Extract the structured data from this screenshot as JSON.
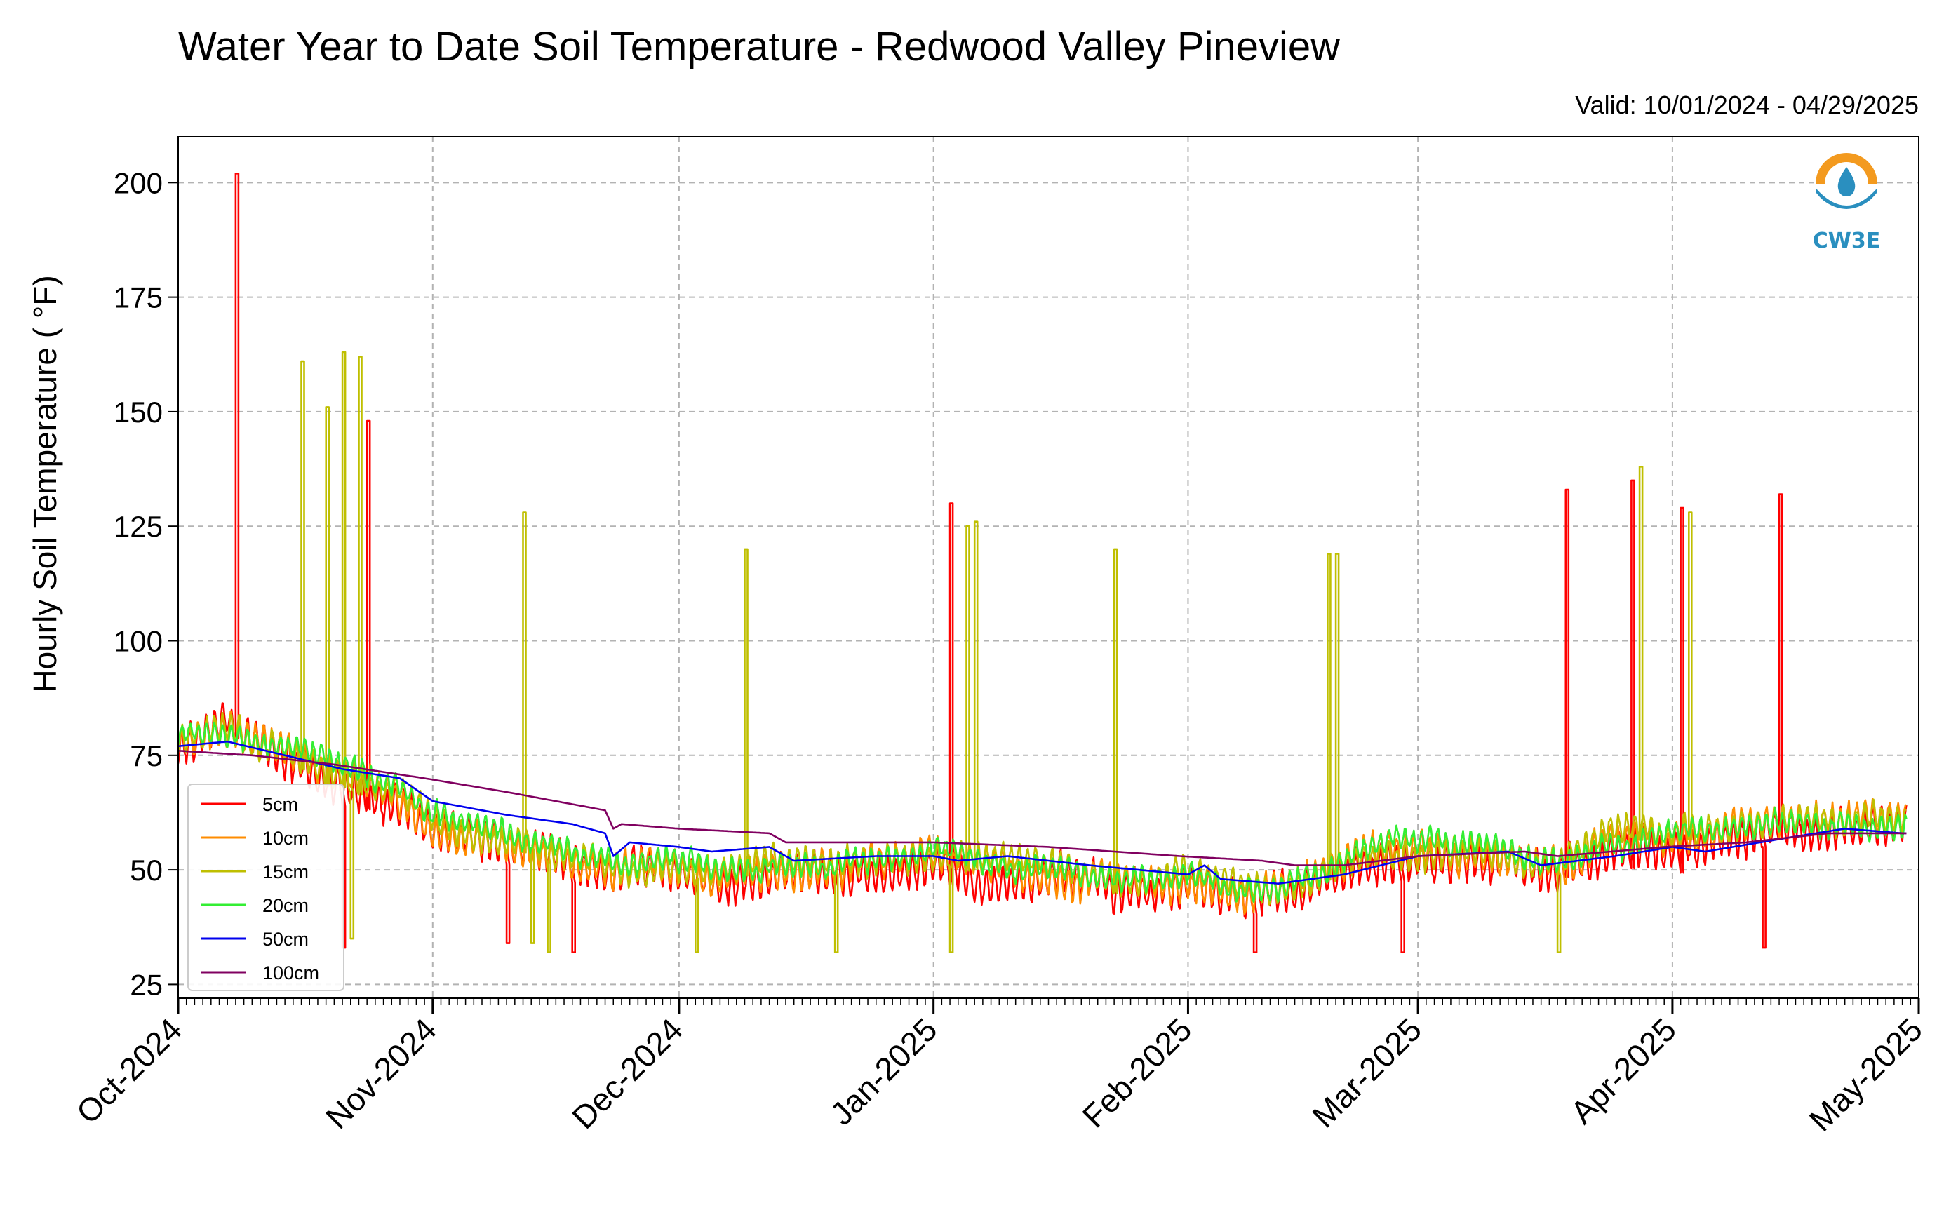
{
  "chart_data": {
    "type": "line",
    "title": "Water Year to Date Soil Temperature - Redwood Valley Pineview",
    "valid_text": "Valid: 10/01/2024 - 04/29/2025",
    "ylabel": "Hourly Soil Temperature ( °F)",
    "xlabel": "",
    "xlim": [
      "2024-10-01",
      "2025-05-01"
    ],
    "ylim": [
      22,
      210
    ],
    "yticks": [
      25,
      50,
      75,
      100,
      125,
      150,
      175,
      200
    ],
    "x_ticks": [
      {
        "date": "2024-10-01",
        "label": "Oct-2024"
      },
      {
        "date": "2024-11-01",
        "label": "Nov-2024"
      },
      {
        "date": "2024-12-01",
        "label": "Dec-2024"
      },
      {
        "date": "2025-01-01",
        "label": "Jan-2025"
      },
      {
        "date": "2025-02-01",
        "label": "Feb-2025"
      },
      {
        "date": "2025-03-01",
        "label": "Mar-2025"
      },
      {
        "date": "2025-04-01",
        "label": "Apr-2025"
      },
      {
        "date": "2025-05-01",
        "label": "May-2025"
      }
    ],
    "grid": true,
    "legend_position": "lower-left",
    "logo_text": "CW3E",
    "series": [
      {
        "name": "5cm",
        "color": "#ff0000",
        "daily_swing": 7,
        "noise_seed": 1,
        "points": [
          [
            "2024-10-01",
            76
          ],
          [
            "2024-10-07",
            80
          ],
          [
            "2024-10-14",
            74
          ],
          [
            "2024-10-21",
            68
          ],
          [
            "2024-10-28",
            64
          ],
          [
            "2024-11-01",
            57
          ],
          [
            "2024-11-10",
            54
          ],
          [
            "2024-11-18",
            52
          ],
          [
            "2024-11-23",
            48
          ],
          [
            "2024-11-28",
            50
          ],
          [
            "2024-12-05",
            47
          ],
          [
            "2024-12-12",
            48
          ],
          [
            "2024-12-20",
            49
          ],
          [
            "2024-12-25",
            50
          ],
          [
            "2025-01-01",
            51
          ],
          [
            "2025-01-07",
            48
          ],
          [
            "2025-01-14",
            47
          ],
          [
            "2025-01-20",
            46
          ],
          [
            "2025-01-27",
            44
          ],
          [
            "2025-02-01",
            47
          ],
          [
            "2025-02-08",
            44
          ],
          [
            "2025-02-15",
            45
          ],
          [
            "2025-02-20",
            48
          ],
          [
            "2025-02-25",
            52
          ],
          [
            "2025-03-05",
            53
          ],
          [
            "2025-03-12",
            52
          ],
          [
            "2025-03-18",
            50
          ],
          [
            "2025-03-25",
            55
          ],
          [
            "2025-04-01",
            55
          ],
          [
            "2025-04-08",
            57
          ],
          [
            "2025-04-15",
            60
          ],
          [
            "2025-04-22",
            58
          ],
          [
            "2025-04-29",
            59
          ]
        ],
        "spikes": [
          [
            "2024-10-08",
            202
          ],
          [
            "2024-10-24",
            148
          ],
          [
            "2025-01-03",
            130
          ],
          [
            "2025-03-19",
            133
          ],
          [
            "2025-03-27",
            135
          ],
          [
            "2025-04-02",
            129
          ],
          [
            "2025-04-14",
            132
          ],
          [
            "2024-11-10",
            34
          ],
          [
            "2024-11-18",
            32
          ],
          [
            "2025-02-09",
            32
          ],
          [
            "2025-02-27",
            32
          ],
          [
            "2025-04-12",
            33
          ],
          [
            "2024-10-21",
            33
          ]
        ]
      },
      {
        "name": "10cm",
        "color": "#ff8c00",
        "daily_swing": 6,
        "noise_seed": 2,
        "points": [
          [
            "2024-10-01",
            78
          ],
          [
            "2024-10-07",
            82
          ],
          [
            "2024-10-14",
            76
          ],
          [
            "2024-10-21",
            70
          ],
          [
            "2024-10-28",
            66
          ],
          [
            "2024-11-01",
            59
          ],
          [
            "2024-11-10",
            56
          ],
          [
            "2024-11-18",
            53
          ],
          [
            "2024-11-23",
            50
          ],
          [
            "2024-11-28",
            52
          ],
          [
            "2024-12-05",
            49
          ],
          [
            "2024-12-12",
            50
          ],
          [
            "2024-12-20",
            50
          ],
          [
            "2024-12-25",
            52
          ],
          [
            "2025-01-01",
            53
          ],
          [
            "2025-01-07",
            50
          ],
          [
            "2025-01-14",
            49
          ],
          [
            "2025-01-20",
            48
          ],
          [
            "2025-01-27",
            46
          ],
          [
            "2025-02-01",
            48
          ],
          [
            "2025-02-08",
            45
          ],
          [
            "2025-02-15",
            47
          ],
          [
            "2025-02-20",
            50
          ],
          [
            "2025-02-25",
            54
          ],
          [
            "2025-03-05",
            55
          ],
          [
            "2025-03-12",
            53
          ],
          [
            "2025-03-18",
            52
          ],
          [
            "2025-03-25",
            58
          ],
          [
            "2025-04-01",
            57
          ],
          [
            "2025-04-08",
            59
          ],
          [
            "2025-04-15",
            62
          ],
          [
            "2025-04-22",
            60
          ],
          [
            "2025-04-29",
            61
          ]
        ],
        "spikes": []
      },
      {
        "name": "15cm",
        "color": "#bfbf00",
        "daily_swing": 5,
        "noise_seed": 3,
        "points": [
          [
            "2024-10-01",
            79
          ],
          [
            "2024-10-07",
            81
          ],
          [
            "2024-10-14",
            76
          ],
          [
            "2024-10-21",
            71
          ],
          [
            "2024-10-28",
            66
          ],
          [
            "2024-11-01",
            59
          ],
          [
            "2024-11-10",
            57
          ],
          [
            "2024-11-18",
            54
          ],
          [
            "2024-11-23",
            51
          ],
          [
            "2024-11-28",
            52
          ],
          [
            "2024-12-05",
            50
          ],
          [
            "2024-12-12",
            51
          ],
          [
            "2024-12-20",
            51
          ],
          [
            "2024-12-25",
            52
          ],
          [
            "2025-01-01",
            53
          ],
          [
            "2025-01-07",
            51
          ],
          [
            "2025-01-14",
            50
          ],
          [
            "2025-01-20",
            49
          ],
          [
            "2025-01-27",
            47
          ],
          [
            "2025-02-01",
            49
          ],
          [
            "2025-02-08",
            46
          ],
          [
            "2025-02-15",
            47
          ],
          [
            "2025-02-20",
            50
          ],
          [
            "2025-02-25",
            54
          ],
          [
            "2025-03-05",
            55
          ],
          [
            "2025-03-12",
            54
          ],
          [
            "2025-03-18",
            52
          ],
          [
            "2025-03-25",
            57
          ],
          [
            "2025-04-01",
            57
          ],
          [
            "2025-04-08",
            59
          ],
          [
            "2025-04-15",
            61
          ],
          [
            "2025-04-22",
            60
          ],
          [
            "2025-04-29",
            60
          ]
        ],
        "spikes": [
          [
            "2024-10-16",
            161
          ],
          [
            "2024-10-19",
            151
          ],
          [
            "2024-10-21",
            163
          ],
          [
            "2024-10-23",
            162
          ],
          [
            "2024-11-12",
            128
          ],
          [
            "2024-12-09",
            120
          ],
          [
            "2025-01-05",
            125
          ],
          [
            "2025-01-06",
            126
          ],
          [
            "2025-01-23",
            120
          ],
          [
            "2025-02-18",
            119
          ],
          [
            "2025-02-19",
            119
          ],
          [
            "2025-03-28",
            138
          ],
          [
            "2025-04-03",
            128
          ],
          [
            "2024-11-13",
            34
          ],
          [
            "2024-11-15",
            32
          ],
          [
            "2024-12-03",
            32
          ],
          [
            "2024-12-20",
            32
          ],
          [
            "2025-01-03",
            32
          ],
          [
            "2025-03-18",
            32
          ],
          [
            "2024-10-22",
            35
          ]
        ]
      },
      {
        "name": "20cm",
        "color": "#33ee33",
        "daily_swing": 4,
        "noise_seed": 4,
        "points": [
          [
            "2024-10-01",
            80
          ],
          [
            "2024-10-07",
            81
          ],
          [
            "2024-10-14",
            77
          ],
          [
            "2024-10-21",
            72
          ],
          [
            "2024-10-28",
            67
          ],
          [
            "2024-11-01",
            60
          ],
          [
            "2024-11-10",
            58
          ],
          [
            "2024-11-18",
            55
          ],
          [
            "2024-11-23",
            52
          ],
          [
            "2024-11-28",
            53
          ],
          [
            "2024-12-05",
            51
          ],
          [
            "2024-12-12",
            51
          ],
          [
            "2024-12-20",
            52
          ],
          [
            "2024-12-25",
            53
          ],
          [
            "2025-01-01",
            53
          ],
          [
            "2025-01-07",
            51
          ],
          [
            "2025-01-14",
            51
          ],
          [
            "2025-01-20",
            50
          ],
          [
            "2025-01-27",
            48
          ],
          [
            "2025-02-01",
            49
          ],
          [
            "2025-02-08",
            46
          ],
          [
            "2025-02-15",
            48
          ],
          [
            "2025-02-20",
            51
          ],
          [
            "2025-02-25",
            55
          ],
          [
            "2025-03-05",
            55
          ],
          [
            "2025-03-12",
            54
          ],
          [
            "2025-03-18",
            52
          ],
          [
            "2025-03-25",
            57
          ],
          [
            "2025-04-01",
            57
          ],
          [
            "2025-04-08",
            59
          ],
          [
            "2025-04-15",
            61
          ],
          [
            "2025-04-22",
            61
          ],
          [
            "2025-04-29",
            59
          ]
        ],
        "spikes": []
      },
      {
        "name": "50cm",
        "color": "#0000ee",
        "daily_swing": 0,
        "noise_seed": 5,
        "points": [
          [
            "2024-10-01",
            77
          ],
          [
            "2024-10-07",
            78
          ],
          [
            "2024-10-14",
            75
          ],
          [
            "2024-10-21",
            72
          ],
          [
            "2024-10-28",
            70
          ],
          [
            "2024-11-01",
            65
          ],
          [
            "2024-11-10",
            62
          ],
          [
            "2024-11-18",
            60
          ],
          [
            "2024-11-22",
            58
          ],
          [
            "2024-11-23",
            53
          ],
          [
            "2024-11-25",
            56
          ],
          [
            "2024-12-01",
            55
          ],
          [
            "2024-12-05",
            54
          ],
          [
            "2024-12-12",
            55
          ],
          [
            "2024-12-15",
            52
          ],
          [
            "2024-12-25",
            53
          ],
          [
            "2025-01-01",
            53
          ],
          [
            "2025-01-04",
            52
          ],
          [
            "2025-01-10",
            53
          ],
          [
            "2025-01-20",
            51
          ],
          [
            "2025-02-01",
            49
          ],
          [
            "2025-02-03",
            51
          ],
          [
            "2025-02-05",
            48
          ],
          [
            "2025-02-12",
            47
          ],
          [
            "2025-02-20",
            49
          ],
          [
            "2025-03-01",
            53
          ],
          [
            "2025-03-12",
            54
          ],
          [
            "2025-03-16",
            51
          ],
          [
            "2025-03-25",
            53
          ],
          [
            "2025-04-01",
            55
          ],
          [
            "2025-04-05",
            54
          ],
          [
            "2025-04-15",
            57
          ],
          [
            "2025-04-22",
            59
          ],
          [
            "2025-04-29",
            58
          ]
        ],
        "spikes": []
      },
      {
        "name": "100cm",
        "color": "#800060",
        "daily_swing": 0,
        "noise_seed": 6,
        "points": [
          [
            "2024-10-01",
            76
          ],
          [
            "2024-10-10",
            75
          ],
          [
            "2024-10-20",
            73
          ],
          [
            "2024-10-31",
            70
          ],
          [
            "2024-11-10",
            67
          ],
          [
            "2024-11-22",
            63
          ],
          [
            "2024-11-23",
            59
          ],
          [
            "2024-11-24",
            60
          ],
          [
            "2024-12-01",
            59
          ],
          [
            "2024-12-12",
            58
          ],
          [
            "2024-12-14",
            56
          ],
          [
            "2024-12-25",
            56
          ],
          [
            "2025-01-01",
            56
          ],
          [
            "2025-01-15",
            55
          ],
          [
            "2025-01-31",
            53
          ],
          [
            "2025-02-10",
            52
          ],
          [
            "2025-02-14",
            51
          ],
          [
            "2025-02-20",
            51
          ],
          [
            "2025-03-01",
            53
          ],
          [
            "2025-03-14",
            54
          ],
          [
            "2025-03-18",
            53
          ],
          [
            "2025-03-31",
            55
          ],
          [
            "2025-04-10",
            56
          ],
          [
            "2025-04-20",
            58
          ],
          [
            "2025-04-29",
            58
          ]
        ],
        "spikes": []
      }
    ]
  }
}
